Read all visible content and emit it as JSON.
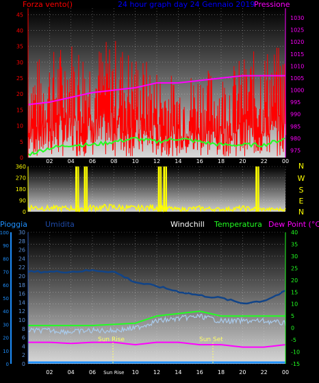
{
  "top": {
    "title": "24 hour graph day  24 Gennaio 2019",
    "left_label": "Forza vento()",
    "right_label": "Pressione",
    "left_ticks": [
      "45",
      "40",
      "35",
      "30",
      "25",
      "20",
      "15",
      "10",
      "5",
      "0"
    ],
    "right_ticks": [
      "1030",
      "1025",
      "1020",
      "1015",
      "1010",
      "1005",
      "1000",
      "995",
      "990",
      "985",
      "980",
      "975"
    ],
    "x_ticks": [
      "02",
      "04",
      "06",
      "08",
      "10",
      "12",
      "14",
      "16",
      "18",
      "20",
      "22",
      "00"
    ]
  },
  "middle": {
    "left_ticks": [
      "360",
      "270",
      "180",
      "90",
      "0"
    ],
    "compass": [
      "N",
      "W",
      "S",
      "E",
      "N"
    ]
  },
  "bottom": {
    "rain_label": "Pioggia",
    "hum_label": "Umidita",
    "windchill_label": "Windchill",
    "temp_label": "Temperatura",
    "dew_label": "Dew Point (°C)",
    "rain_ticks": [
      "100",
      "90",
      "80",
      "70",
      "60",
      "50",
      "40",
      "30",
      "20",
      "10",
      "0"
    ],
    "hum_ticks": [
      "30",
      "28",
      "26",
      "24",
      "22",
      "20",
      "18",
      "16",
      "14",
      "12",
      "10",
      "8",
      "6",
      "4",
      "2",
      "0"
    ],
    "temp_ticks": [
      "40",
      "35",
      "30",
      "25",
      "20",
      "15",
      "10",
      "5",
      "0",
      "-5",
      "-10",
      "-15"
    ],
    "x_ticks": [
      "02",
      "04",
      "06",
      "Sun Rise",
      "10",
      "12",
      "14",
      "16",
      "18",
      "20",
      "22",
      "00"
    ],
    "sunrise_label": "Sun Rise",
    "sunset_label": "Sun Set"
  },
  "colors": {
    "wind": "#ff0000",
    "pressure": "#ff00ff",
    "direction": "#ffff00",
    "windchill": "#aaccee",
    "temperature": "#22ff22",
    "dewpoint": "#ff00ff",
    "humidity": "#114488",
    "rain": "#1e90ff",
    "title": "#0000ff"
  },
  "chart_data": [
    {
      "type": "line",
      "x": [
        "00",
        "02",
        "04",
        "06",
        "08",
        "10",
        "12",
        "14",
        "16",
        "18",
        "20",
        "22",
        "00"
      ],
      "series": [
        {
          "values": [
            19,
            21,
            24,
            22,
            24,
            21,
            18,
            16,
            18,
            17,
            20,
            22,
            22
          ]
        },
        {
          "values": [
            1,
            3,
            4,
            4,
            5,
            6,
            5,
            6,
            5,
            4,
            4,
            4,
            6
          ]
        }
      ],
      "ylim": [
        0,
        47
      ],
      "y2lim": [
        972,
        1034
      ],
      "y2_series": {
        "values": [
          994,
          995,
          997,
          999,
          1000,
          1001,
          1003,
          1003,
          1004,
          1005,
          1006,
          1006,
          1006
        ]
      }
    },
    {
      "type": "scatter",
      "x": [
        "00",
        "02",
        "04",
        "06",
        "08",
        "10",
        "12",
        "14",
        "16",
        "18",
        "20",
        "22",
        "00"
      ],
      "values": [
        40,
        30,
        30,
        35,
        40,
        30,
        40,
        20,
        30,
        20,
        30,
        20,
        20
      ],
      "spikes": [
        {
          "x": "04.5",
          "value": 360
        },
        {
          "x": "05.3",
          "value": 360
        },
        {
          "x": "12.2",
          "value": 360
        },
        {
          "x": "12.7",
          "value": 360
        },
        {
          "x": "21.3",
          "value": 360
        }
      ],
      "ylim": [
        0,
        360
      ]
    },
    {
      "type": "line",
      "x": [
        "00",
        "02",
        "04",
        "06",
        "08",
        "10",
        "12",
        "14",
        "16",
        "18",
        "20",
        "22",
        "00"
      ],
      "temperature": [
        1,
        1,
        1,
        1,
        1.5,
        2,
        5,
        6,
        7,
        5,
        5,
        5,
        5
      ],
      "windchill": [
        0,
        0,
        -0.5,
        0,
        0,
        1,
        4,
        5,
        6,
        4,
        4,
        4,
        3
      ],
      "dewpoint": [
        -6,
        -6,
        -6.5,
        -6,
        -6,
        -7,
        -6,
        -6,
        -7,
        -7,
        -8,
        -8,
        -7
      ],
      "humidity": [
        70,
        70,
        70,
        71,
        70,
        62,
        59,
        55,
        52,
        50,
        46,
        48,
        55
      ],
      "rain": [
        0,
        0,
        0,
        0,
        0,
        0,
        0,
        0,
        0,
        0,
        0,
        0,
        0
      ],
      "rain_ylim": [
        0,
        100
      ],
      "temp_ylim": [
        -15,
        40
      ]
    }
  ]
}
